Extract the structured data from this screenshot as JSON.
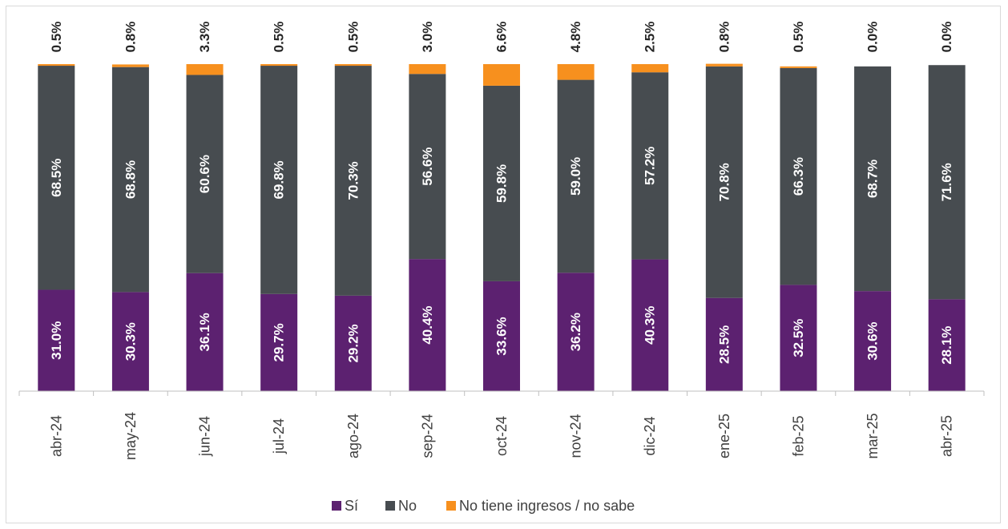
{
  "chart_data": {
    "type": "bar",
    "stacked": true,
    "orientation": "vertical",
    "categories": [
      "abr-24",
      "may-24",
      "jun-24",
      "jul-24",
      "ago-24",
      "sep-24",
      "oct-24",
      "nov-24",
      "dic-24",
      "ene-25",
      "feb-25",
      "mar-25",
      "abr-25"
    ],
    "series": [
      {
        "name": "Sí",
        "color": "#5c2170",
        "values": [
          31.0,
          30.3,
          36.1,
          29.7,
          29.2,
          40.4,
          33.6,
          36.2,
          40.3,
          28.5,
          32.5,
          30.6,
          28.1
        ],
        "labels": [
          "31.0%",
          "30.3%",
          "36.1%",
          "29.7%",
          "29.2%",
          "40.4%",
          "33.6%",
          "36.2%",
          "40.3%",
          "28.5%",
          "32.5%",
          "30.6%",
          "28.1%"
        ]
      },
      {
        "name": "No",
        "color": "#474c50",
        "values": [
          68.5,
          68.8,
          60.6,
          69.8,
          70.3,
          56.6,
          59.8,
          59.0,
          57.2,
          70.8,
          66.3,
          68.7,
          71.6
        ],
        "labels": [
          "68.5%",
          "68.8%",
          "60.6%",
          "69.8%",
          "70.3%",
          "56.6%",
          "59.8%",
          "59.0%",
          "57.2%",
          "70.8%",
          "66.3%",
          "68.7%",
          "71.6%"
        ]
      },
      {
        "name": "No tiene ingresos / no sabe",
        "color": "#f7901e",
        "values": [
          0.5,
          0.8,
          3.3,
          0.5,
          0.5,
          3.0,
          6.6,
          4.8,
          2.5,
          0.8,
          0.5,
          0.0,
          0.0
        ],
        "labels": [
          "0.5%",
          "0.8%",
          "3.3%",
          "0.5%",
          "0.5%",
          "3.0%",
          "6.6%",
          "4.8%",
          "2.5%",
          "0.8%",
          "0.5%",
          "0.0%",
          "0.0%"
        ]
      }
    ],
    "ylim": [
      0,
      100
    ],
    "grid": false,
    "legend": "bottom-center",
    "axis_color": "#bfbfbf",
    "tick_color": "#404040"
  }
}
